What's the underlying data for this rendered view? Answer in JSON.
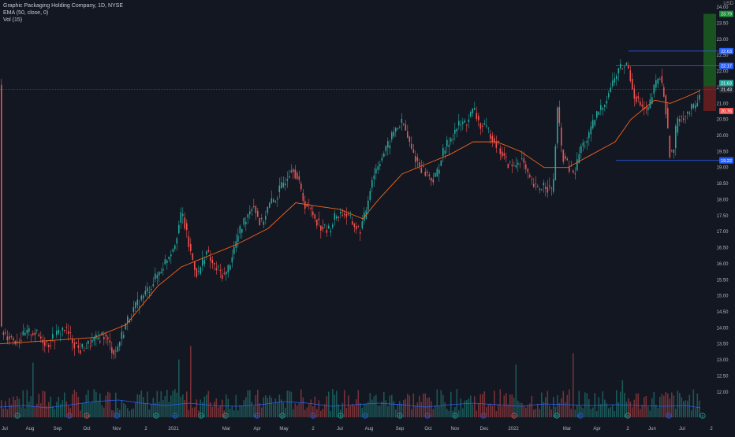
{
  "legend": {
    "title": "Graphic Packaging Holding Company, 1D, NYSE",
    "ema": "EMA (50, close, 0)",
    "vol": "Vol (15)"
  },
  "currency": "USD",
  "colors": {
    "background": "#131722",
    "up": "#26a69a",
    "down": "#ef5350",
    "ema": "#f7631b",
    "volume_ma": "#2962ff",
    "level_line": "#2962ff",
    "profit_zone": "#1b5e20",
    "loss_zone": "#6d1f1f",
    "axis_text": "#b2b5be"
  },
  "chart_data": {
    "type": "candlestick",
    "ylim": [
      11.75,
      24.1
    ],
    "y_ticks": [
      "24.00",
      "23.50",
      "23.00",
      "22.50",
      "22.00",
      "21.50",
      "21.00",
      "20.50",
      "20.00",
      "19.50",
      "19.00",
      "18.50",
      "18.00",
      "17.50",
      "17.00",
      "16.50",
      "16.00",
      "15.50",
      "15.00",
      "14.50",
      "14.00",
      "13.50",
      "13.00",
      "12.50",
      "12.00"
    ],
    "x_ticks": [
      "Jul",
      "Aug",
      "Sep",
      "Oct",
      "Nov",
      "2",
      "2021",
      "Mar",
      "Apr",
      "May",
      "2",
      "Jul",
      "Aug",
      "Sep",
      "Oct",
      "Nov",
      "Dec",
      "2022",
      "Mar",
      "Apr",
      "2",
      "Jun",
      "Jul",
      "2"
    ],
    "close_path": [
      [
        0,
        13.9
      ],
      [
        20,
        13.6
      ],
      [
        40,
        13.9
      ],
      [
        60,
        13.5
      ],
      [
        80,
        14.0
      ],
      [
        100,
        13.3
      ],
      [
        120,
        13.6
      ],
      [
        130,
        13.8
      ],
      [
        145,
        13.2
      ],
      [
        160,
        14.2
      ],
      [
        175,
        14.8
      ],
      [
        190,
        15.3
      ],
      [
        205,
        15.9
      ],
      [
        220,
        16.6
      ],
      [
        230,
        17.6
      ],
      [
        240,
        16.4
      ],
      [
        250,
        15.6
      ],
      [
        260,
        16.4
      ],
      [
        270,
        15.9
      ],
      [
        285,
        15.6
      ],
      [
        300,
        16.8
      ],
      [
        310,
        17.4
      ],
      [
        320,
        17.9
      ],
      [
        330,
        17.2
      ],
      [
        340,
        17.8
      ],
      [
        350,
        18.1
      ],
      [
        360,
        18.6
      ],
      [
        370,
        19.1
      ],
      [
        378,
        18.5
      ],
      [
        385,
        17.9
      ],
      [
        395,
        17.6
      ],
      [
        405,
        17.2
      ],
      [
        415,
        17.0
      ],
      [
        425,
        17.5
      ],
      [
        435,
        17.6
      ],
      [
        445,
        17.3
      ],
      [
        455,
        17.0
      ],
      [
        462,
        17.5
      ],
      [
        470,
        18.6
      ],
      [
        480,
        19.2
      ],
      [
        490,
        19.6
      ],
      [
        500,
        20.2
      ],
      [
        510,
        20.4
      ],
      [
        520,
        19.6
      ],
      [
        530,
        19.1
      ],
      [
        540,
        18.8
      ],
      [
        550,
        18.6
      ],
      [
        560,
        19.4
      ],
      [
        570,
        19.9
      ],
      [
        580,
        20.3
      ],
      [
        590,
        20.4
      ],
      [
        600,
        20.8
      ],
      [
        608,
        20.3
      ],
      [
        620,
        20.1
      ],
      [
        630,
        19.7
      ],
      [
        640,
        19.2
      ],
      [
        650,
        19.0
      ],
      [
        660,
        19.3
      ],
      [
        670,
        18.6
      ],
      [
        680,
        18.3
      ],
      [
        690,
        18.5
      ],
      [
        700,
        18.2
      ],
      [
        706,
        20.8
      ],
      [
        712,
        19.4
      ],
      [
        720,
        19.0
      ],
      [
        728,
        18.8
      ],
      [
        735,
        19.6
      ],
      [
        745,
        19.9
      ],
      [
        755,
        20.6
      ],
      [
        765,
        21.0
      ],
      [
        775,
        21.6
      ],
      [
        785,
        22.1
      ],
      [
        795,
        22.2
      ],
      [
        803,
        21.3
      ],
      [
        812,
        20.9
      ],
      [
        820,
        20.7
      ],
      [
        828,
        21.4
      ],
      [
        835,
        21.9
      ],
      [
        842,
        21.2
      ],
      [
        848,
        19.5
      ],
      [
        853,
        19.4
      ],
      [
        858,
        20.6
      ],
      [
        865,
        20.6
      ],
      [
        872,
        20.7
      ],
      [
        880,
        20.9
      ],
      [
        888,
        21.5
      ]
    ],
    "ema_path": [
      [
        0,
        13.5
      ],
      [
        60,
        13.6
      ],
      [
        120,
        13.7
      ],
      [
        160,
        14.1
      ],
      [
        200,
        15.3
      ],
      [
        230,
        15.9
      ],
      [
        260,
        16.2
      ],
      [
        300,
        16.6
      ],
      [
        340,
        17.1
      ],
      [
        375,
        17.9
      ],
      [
        400,
        17.8
      ],
      [
        430,
        17.7
      ],
      [
        460,
        17.4
      ],
      [
        480,
        18.0
      ],
      [
        510,
        18.8
      ],
      [
        540,
        19.1
      ],
      [
        570,
        19.4
      ],
      [
        600,
        19.8
      ],
      [
        630,
        19.8
      ],
      [
        660,
        19.5
      ],
      [
        690,
        19.0
      ],
      [
        720,
        19.0
      ],
      [
        750,
        19.4
      ],
      [
        780,
        19.8
      ],
      [
        800,
        20.5
      ],
      [
        830,
        21.1
      ],
      [
        850,
        21.0
      ],
      [
        870,
        21.2
      ],
      [
        888,
        21.4
      ]
    ],
    "volume_ma_path": [
      [
        0,
        13
      ],
      [
        30,
        15
      ],
      [
        60,
        12
      ],
      [
        90,
        16
      ],
      [
        120,
        20
      ],
      [
        150,
        22
      ],
      [
        180,
        18
      ],
      [
        210,
        15
      ],
      [
        240,
        18
      ],
      [
        270,
        15
      ],
      [
        300,
        14
      ],
      [
        330,
        16
      ],
      [
        360,
        20
      ],
      [
        390,
        18
      ],
      [
        420,
        14
      ],
      [
        450,
        16
      ],
      [
        480,
        18
      ],
      [
        510,
        16
      ],
      [
        540,
        13
      ],
      [
        570,
        16
      ],
      [
        600,
        18
      ],
      [
        630,
        16
      ],
      [
        660,
        14
      ],
      [
        690,
        17
      ],
      [
        720,
        16
      ],
      [
        750,
        15
      ],
      [
        780,
        16
      ],
      [
        810,
        15
      ],
      [
        840,
        14
      ],
      [
        870,
        15
      ],
      [
        888,
        12
      ]
    ],
    "price_labels": [
      {
        "value": "23.79",
        "price": 23.79,
        "kind": "profit"
      },
      {
        "value": "22.63",
        "price": 22.63,
        "kind": "level"
      },
      {
        "value": "22.17",
        "price": 22.17,
        "kind": "level"
      },
      {
        "value": "21.63",
        "price": 21.63,
        "kind": "up"
      },
      {
        "value": "21.43",
        "price": 21.43,
        "kind": "current"
      },
      {
        "value": "20.76",
        "price": 20.76,
        "kind": "down"
      },
      {
        "value": "19.22",
        "price": 19.22,
        "kind": "level"
      }
    ],
    "horizontal_levels": [
      22.63,
      22.17,
      19.22
    ],
    "current_price": 21.43,
    "position": {
      "entry": 21.53,
      "target": 23.79,
      "stop": 20.76
    },
    "event_markers": [
      "E",
      "D",
      "E",
      "D",
      "E",
      "D",
      "E",
      "E",
      "D",
      "E",
      "D",
      "E",
      "D",
      "E",
      "D",
      "E",
      "D",
      "E",
      "E",
      "D",
      "E",
      "D",
      "E"
    ]
  }
}
